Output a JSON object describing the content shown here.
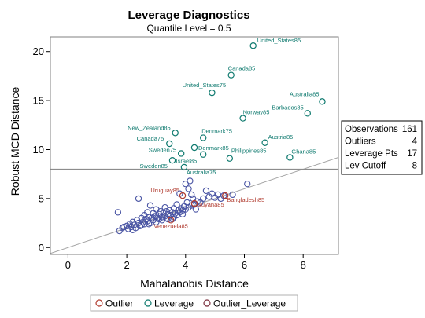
{
  "colors": {
    "normal": "#4a55a4",
    "outlier": "#b03a2e",
    "leverage": "#0f7a6f",
    "outlier_leverage": "#7a2e3c",
    "cutoff_line": "#8c8c8c",
    "fit_line": "#a3a3a3",
    "frame": "#808080",
    "plot_bg": "#ffffff"
  },
  "chart_data": {
    "type": "scatter",
    "title": "Leverage Diagnostics",
    "subtitle": "Quantile Level = 0.5",
    "xlabel": "Mahalanobis Distance",
    "ylabel": "Robust MCD Distance",
    "xlim": [
      -0.6,
      9.2
    ],
    "ylim": [
      -0.7,
      21.5
    ],
    "xticks": [
      0,
      2,
      4,
      6,
      8
    ],
    "yticks": [
      0,
      5,
      10,
      15,
      20
    ],
    "grid": false,
    "legend_placement": "bottom",
    "horizontal_cutoff": 8,
    "reference_line": {
      "slope": 1.0,
      "intercept": 0.0
    },
    "stats": [
      {
        "label": "Observations",
        "value": "161"
      },
      {
        "label": "Outliers",
        "value": "4"
      },
      {
        "label": "Leverage Pts",
        "value": "17"
      },
      {
        "label": "Lev Cutoff",
        "value": "8"
      }
    ],
    "legend": [
      {
        "name": "Outlier",
        "key": "outlier"
      },
      {
        "name": "Leverage",
        "key": "leverage"
      },
      {
        "name": "Outlier_Leverage",
        "key": "outlier_leverage"
      }
    ],
    "leverage_points": [
      {
        "label": "United_States85",
        "x": 6.3,
        "y": 20.6
      },
      {
        "label": "Canada85",
        "x": 5.55,
        "y": 17.6
      },
      {
        "label": "United_States75",
        "x": 4.9,
        "y": 15.8
      },
      {
        "label": "Australia85",
        "x": 8.65,
        "y": 14.9
      },
      {
        "label": "Barbados85",
        "x": 8.15,
        "y": 13.7
      },
      {
        "label": "Norway85",
        "x": 5.95,
        "y": 13.2
      },
      {
        "label": "New_Zealand85",
        "x": 3.65,
        "y": 11.7
      },
      {
        "label": "Denmark75",
        "x": 4.6,
        "y": 11.2
      },
      {
        "label": "Canada75",
        "x": 3.45,
        "y": 10.6
      },
      {
        "label": "Austria85",
        "x": 6.7,
        "y": 10.7
      },
      {
        "label": "Denmark85",
        "x": 4.3,
        "y": 10.2
      },
      {
        "label": "Sweden75",
        "x": 3.85,
        "y": 9.6
      },
      {
        "label": "Philippines85",
        "x": 5.5,
        "y": 9.1
      },
      {
        "label": "Ghana85",
        "x": 7.55,
        "y": 9.2
      },
      {
        "label": "Israel85",
        "x": 4.6,
        "y": 9.5
      },
      {
        "label": "Sweden85",
        "x": 3.55,
        "y": 8.9
      },
      {
        "label": "Australia75",
        "x": 3.95,
        "y": 8.2
      }
    ],
    "outlier_points": [
      {
        "label": "Uruguay85",
        "x": 3.9,
        "y": 5.3
      },
      {
        "label": "Bangladesh85",
        "x": 5.35,
        "y": 5.3
      },
      {
        "label": "Guyana85",
        "x": 4.3,
        "y": 4.5
      },
      {
        "label": "Venezuela85",
        "x": 3.5,
        "y": 2.8
      }
    ],
    "normal_points": [
      [
        1.7,
        3.6
      ],
      [
        1.75,
        1.7
      ],
      [
        1.85,
        2.0
      ],
      [
        1.9,
        2.1
      ],
      [
        2.0,
        2.2
      ],
      [
        2.05,
        1.9
      ],
      [
        2.1,
        2.4
      ],
      [
        2.15,
        2.1
      ],
      [
        2.2,
        2.6
      ],
      [
        2.25,
        2.3
      ],
      [
        2.3,
        2.0
      ],
      [
        2.35,
        2.8
      ],
      [
        2.4,
        2.5
      ],
      [
        2.4,
        5.0
      ],
      [
        2.45,
        2.2
      ],
      [
        2.5,
        3.0
      ],
      [
        2.55,
        2.6
      ],
      [
        2.6,
        2.4
      ],
      [
        2.6,
        3.3
      ],
      [
        2.65,
        2.9
      ],
      [
        2.7,
        2.7
      ],
      [
        2.7,
        3.6
      ],
      [
        2.75,
        3.1
      ],
      [
        2.8,
        2.5
      ],
      [
        2.8,
        4.3
      ],
      [
        2.85,
        3.0
      ],
      [
        2.9,
        2.8
      ],
      [
        2.9,
        3.5
      ],
      [
        2.95,
        3.2
      ],
      [
        3.0,
        2.6
      ],
      [
        3.0,
        3.9
      ],
      [
        3.05,
        3.0
      ],
      [
        3.1,
        2.9
      ],
      [
        3.1,
        3.4
      ],
      [
        3.15,
        3.7
      ],
      [
        3.2,
        3.1
      ],
      [
        3.2,
        2.8
      ],
      [
        3.25,
        3.5
      ],
      [
        3.3,
        3.2
      ],
      [
        3.3,
        4.1
      ],
      [
        3.35,
        3.0
      ],
      [
        3.4,
        3.4
      ],
      [
        3.4,
        2.9
      ],
      [
        3.45,
        3.8
      ],
      [
        3.5,
        3.3
      ],
      [
        3.55,
        3.6
      ],
      [
        3.6,
        3.1
      ],
      [
        3.6,
        4.0
      ],
      [
        3.65,
        3.5
      ],
      [
        3.7,
        3.3
      ],
      [
        3.7,
        4.4
      ],
      [
        3.75,
        3.8
      ],
      [
        3.8,
        3.6
      ],
      [
        3.8,
        5.5
      ],
      [
        3.85,
        4.0
      ],
      [
        3.9,
        3.4
      ],
      [
        3.95,
        4.2
      ],
      [
        4.0,
        3.9
      ],
      [
        4.0,
        6.5
      ],
      [
        4.05,
        4.6
      ],
      [
        4.1,
        4.1
      ],
      [
        4.1,
        6.0
      ],
      [
        4.15,
        6.8
      ],
      [
        4.2,
        4.3
      ],
      [
        4.25,
        5.0
      ],
      [
        4.3,
        4.4
      ],
      [
        4.35,
        3.9
      ],
      [
        4.4,
        4.7
      ],
      [
        4.5,
        4.6
      ],
      [
        4.6,
        5.0
      ],
      [
        4.7,
        5.8
      ],
      [
        4.8,
        5.2
      ],
      [
        4.9,
        5.5
      ],
      [
        5.0,
        5.1
      ],
      [
        5.1,
        5.4
      ],
      [
        5.2,
        5.0
      ],
      [
        5.3,
        5.3
      ],
      [
        5.6,
        5.4
      ],
      [
        6.1,
        6.5
      ],
      [
        2.2,
        1.8
      ],
      [
        2.5,
        2.3
      ],
      [
        2.75,
        2.4
      ],
      [
        3.0,
        3.2
      ],
      [
        3.35,
        3.7
      ],
      [
        3.55,
        2.9
      ],
      [
        3.9,
        3.8
      ],
      [
        4.2,
        5.4
      ]
    ]
  }
}
